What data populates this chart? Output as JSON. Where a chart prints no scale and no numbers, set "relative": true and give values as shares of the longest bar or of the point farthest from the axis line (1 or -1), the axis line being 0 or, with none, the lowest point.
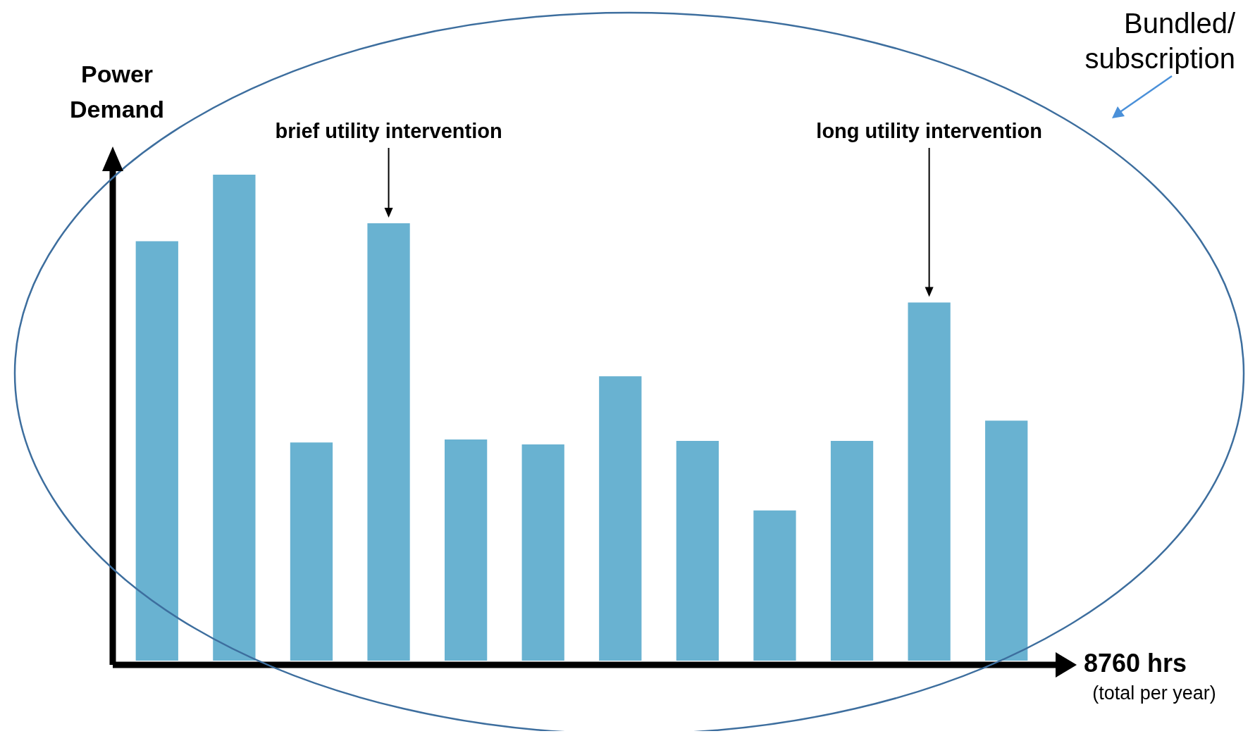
{
  "chart_data": {
    "type": "bar",
    "relative": true,
    "ylabel": "Power Demand",
    "xlabel": "8760 hrs",
    "categories": [
      null,
      null,
      null,
      null,
      null,
      null,
      null,
      null,
      null,
      null,
      null,
      null
    ],
    "values": [
      0.863,
      1,
      0.449,
      0.9,
      0.455,
      0.445,
      0.585,
      0.452,
      0.309,
      0.452,
      0.737,
      0.494
    ],
    "color": "#69b2d1",
    "grid": false,
    "legend": false,
    "annotations": [
      "brief utility intervention",
      "long utility intervention",
      "(total per year)",
      "Bundled/ subscription"
    ]
  }
}
